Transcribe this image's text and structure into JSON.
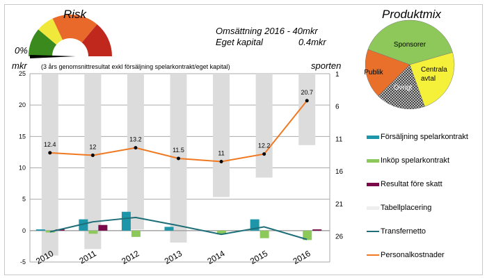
{
  "risk": {
    "title": "Risk",
    "value_label": "0%",
    "value_percent": 0,
    "segment_colors": [
      "#3a8a1e",
      "#f0e83a",
      "#e8692a",
      "#c0281e"
    ]
  },
  "info": {
    "line1": "Omsättning 2016 - 40mkr",
    "line2_label": "Eget kapital",
    "line2_value": "0.4mkr"
  },
  "produktmix": {
    "title": "Produktmix",
    "slices": [
      {
        "label": "Sponsorer",
        "share": 40,
        "color": "#8fc85a"
      },
      {
        "label": "Centrala avtal",
        "share": 24,
        "color": "#f5f03a"
      },
      {
        "label": "Övrigt",
        "share": 18,
        "color": "#555555"
      },
      {
        "label": "Publik",
        "share": 18,
        "color": "#e8702a"
      }
    ]
  },
  "chart_data": {
    "type": "bar",
    "ylabel": "mkr",
    "y2label": "sporten",
    "subtitle": "(3 års genomsnittresultat exkl försäljning spelarkontrakt/eget kapital)",
    "categories": [
      "2010",
      "2011",
      "2012",
      "2013",
      "2014",
      "2015",
      "2016"
    ],
    "ylim": [
      -5,
      25
    ],
    "yticks": [
      "-5",
      "0",
      "5",
      "10",
      "15",
      "20",
      "25"
    ],
    "y2lim": [
      1,
      30
    ],
    "y2_reversed": true,
    "y2ticks": [
      "1",
      "6",
      "11",
      "16",
      "21",
      "26"
    ],
    "grid": true,
    "legend_placement": "right",
    "series": [
      {
        "name": "Försäljning spelarkontrakt",
        "kind": "bar",
        "color": "#1e96aa",
        "values": [
          0.2,
          1.8,
          3.0,
          0.6,
          0,
          1.8,
          0
        ]
      },
      {
        "name": "Inköp spelarkontrakt",
        "kind": "bar",
        "color": "#8cc85a",
        "values": [
          -0.3,
          -0.5,
          -1.0,
          0,
          -0.6,
          -1.2,
          -1.5
        ]
      },
      {
        "name": "Resultat före skatt",
        "kind": "bar",
        "color": "#7a0a4a",
        "values": [
          0.2,
          0.9,
          0,
          0,
          0,
          0,
          0.2
        ]
      },
      {
        "name": "Tabellplacering",
        "kind": "bar-y2",
        "color": "#dcdcdc",
        "values": [
          29,
          28,
          25,
          27,
          20,
          17,
          12
        ]
      },
      {
        "name": "Transfernetto",
        "kind": "line",
        "color": "#1e6e78",
        "values": [
          -0.2,
          1.4,
          2.1,
          0.8,
          -0.6,
          0.6,
          -1.4
        ]
      },
      {
        "name": "Personalkostnader",
        "kind": "line-labeled",
        "color": "#f07820",
        "values": [
          12.4,
          12,
          13.2,
          11.5,
          11,
          12.2,
          20.7
        ],
        "labels": [
          "12.4",
          "12",
          "13.2",
          "11.5",
          "11",
          "12.2",
          "20.7"
        ]
      }
    ]
  }
}
